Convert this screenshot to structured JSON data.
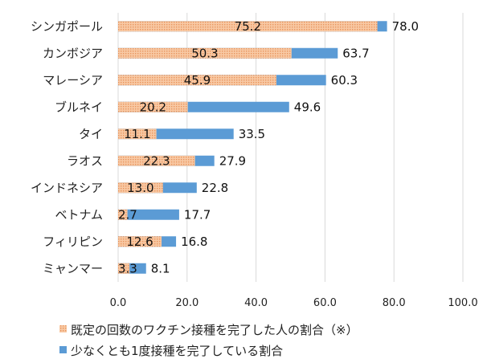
{
  "chart_data": {
    "type": "bar",
    "orientation": "horizontal",
    "categories": [
      "シンガポール",
      "カンボジア",
      "マレーシア",
      "ブルネイ",
      "タイ",
      "ラオス",
      "インドネシア",
      "ベトナム",
      "フィリピン",
      "ミャンマー"
    ],
    "series": [
      {
        "name": "少なくとも1度接種を完了している割合",
        "color": "#5B9BD5",
        "values": [
          78.0,
          63.7,
          60.3,
          49.6,
          33.5,
          27.9,
          22.8,
          17.7,
          16.8,
          8.1
        ],
        "labels": [
          "78.0",
          "63.7",
          "60.3",
          "49.6",
          "33.5",
          "27.9",
          "22.8",
          "17.7",
          "16.8",
          "8.1"
        ]
      },
      {
        "name": "既定の回数のワクチン接種を完了した人の割合（※）",
        "color": "#F4B183",
        "pattern": "dotted",
        "values": [
          75.2,
          50.3,
          45.9,
          20.2,
          11.1,
          22.3,
          13.0,
          2.7,
          12.6,
          3.3
        ],
        "labels": [
          "75.2",
          "50.3",
          "45.9",
          "20.2",
          "11.1",
          "22.3",
          "13.0",
          "2.7",
          "12.6",
          "3.3"
        ]
      }
    ],
    "xlim": [
      0,
      100
    ],
    "xticks": [
      "0.0",
      "20.0",
      "40.0",
      "60.0",
      "80.0",
      "100.0"
    ],
    "xtick_values": [
      0,
      20,
      40,
      60,
      80,
      100
    ],
    "grid": true,
    "legend_position": "bottom",
    "legend": [
      "既定の回数のワクチン接種を完了した人の割合（※）",
      "少なくとも1度接種を完了している割合"
    ],
    "title": "",
    "xlabel": "",
    "ylabel": ""
  }
}
